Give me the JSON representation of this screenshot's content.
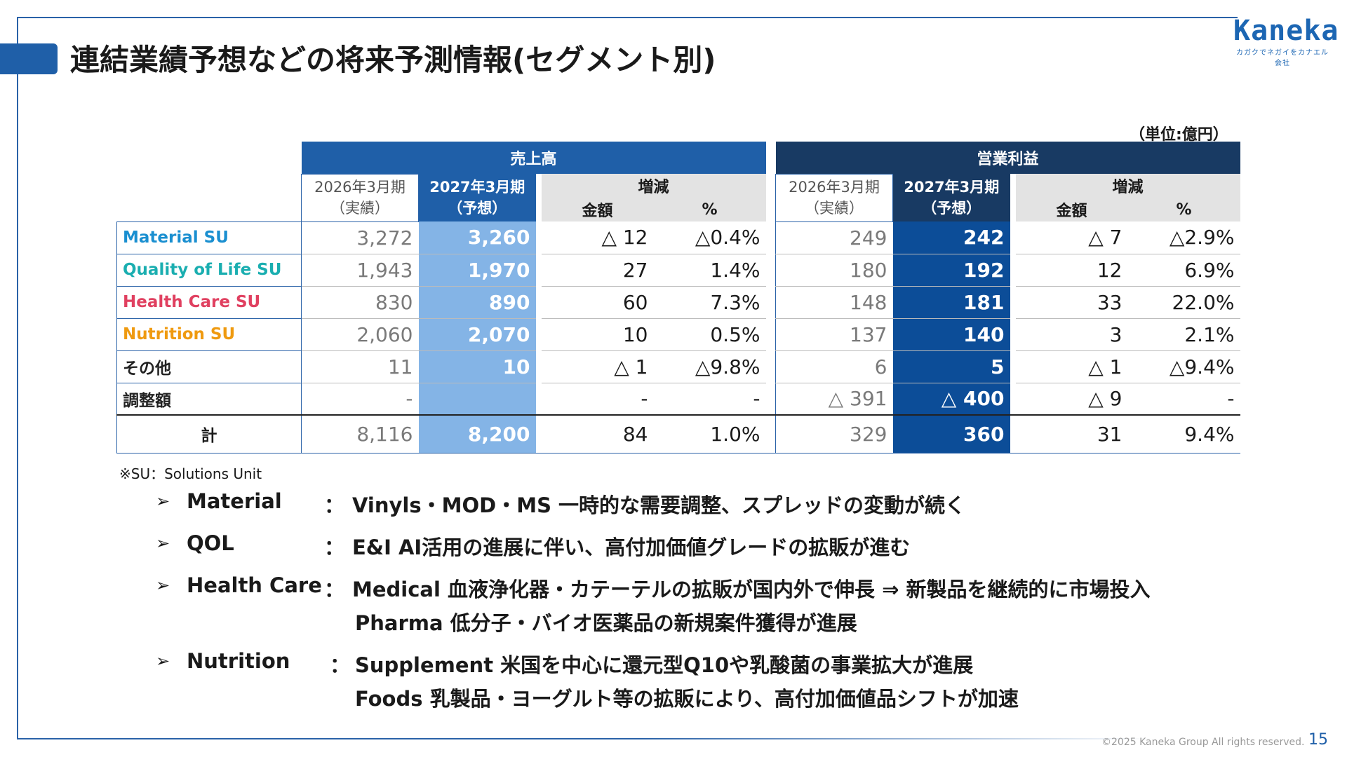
{
  "title": "連結業績予想などの将来予測情報(セグメント別)",
  "logo": {
    "word": "Kaneka",
    "tagline": "カガクでネガイをカナエル会社"
  },
  "unit": "（単位:億円）",
  "groups": {
    "sales": "売上高",
    "op": "営業利益"
  },
  "period_actual": {
    "line1": "2026年3月期",
    "line2": "（実績）"
  },
  "period_forecast": {
    "line1": "2027年3月期",
    "line2": "（予想）"
  },
  "change_header": "増減",
  "change_amount": "金額",
  "change_pct": "%",
  "rows": [
    {
      "label": "Material SU",
      "color": "#1a8fd0",
      "s_act": "3,272",
      "s_fc": "3,260",
      "s_chg": "△ 12",
      "s_pct": "△0.4%",
      "o_act": "249",
      "o_fc": "242",
      "o_chg": "△ 7",
      "o_pct": "△2.9%"
    },
    {
      "label": "Quality of  Life SU",
      "color": "#1aaeb0",
      "s_act": "1,943",
      "s_fc": "1,970",
      "s_chg": "27",
      "s_pct": "1.4%",
      "o_act": "180",
      "o_fc": "192",
      "o_chg": "12",
      "o_pct": "6.9%"
    },
    {
      "label": "Health Care SU",
      "color": "#e04060",
      "s_act": "830",
      "s_fc": "890",
      "s_chg": "60",
      "s_pct": "7.3%",
      "o_act": "148",
      "o_fc": "181",
      "o_chg": "33",
      "o_pct": "22.0%"
    },
    {
      "label": "Nutrition SU",
      "color": "#ef9a10",
      "s_act": "2,060",
      "s_fc": "2,070",
      "s_chg": "10",
      "s_pct": "0.5%",
      "o_act": "137",
      "o_fc": "140",
      "o_chg": "3",
      "o_pct": "2.1%"
    },
    {
      "label": "その他",
      "color": "#222222",
      "s_act": "11",
      "s_fc": "10",
      "s_chg": "△ 1",
      "s_pct": "△9.8%",
      "o_act": "6",
      "o_fc": "5",
      "o_chg": "△ 1",
      "o_pct": "△9.4%"
    },
    {
      "label": "調整額",
      "color": "#222222",
      "s_act": "-",
      "s_fc": "",
      "s_chg": "-",
      "s_pct": "-",
      "o_act": "△ 391",
      "o_fc": "△ 400",
      "o_chg": "△ 9",
      "o_pct": "-"
    }
  ],
  "total": {
    "label": "計",
    "s_act": "8,116",
    "s_fc": "8,200",
    "s_chg": "84",
    "s_pct": "1.0%",
    "o_act": "329",
    "o_fc": "360",
    "o_chg": "31",
    "o_pct": "9.4%"
  },
  "note": "※SU：Solutions Unit",
  "bullets": [
    {
      "name": "Material",
      "lines": [
        "Vinyls・MOD・MS  一時的な需要調整、スプレッドの変動が続く"
      ]
    },
    {
      "name": "QOL",
      "lines": [
        "E&I  AI活用の進展に伴い、高付加価値グレードの拡販が進む"
      ]
    },
    {
      "name": "Health Care",
      "lines": [
        "Medical  血液浄化器・カテーテルの拡販が国内外で伸長  ⇒  新製品を継続的に市場投入",
        "Pharma  低分子・バイオ医薬品の新規案件獲得が進展"
      ]
    },
    {
      "name": "Nutrition",
      "lines": [
        "Supplement  米国を中心に還元型Q10や乳酸菌の事業拡大が進展",
        "Foods  乳製品・ヨーグルト等の拡販により、高付加価値品シフトが加速"
      ]
    }
  ],
  "arrow_glyph": "➢",
  "colon": "：",
  "copyright": "©2025 Kaneka Group All rights reserved.",
  "page_number": "15"
}
